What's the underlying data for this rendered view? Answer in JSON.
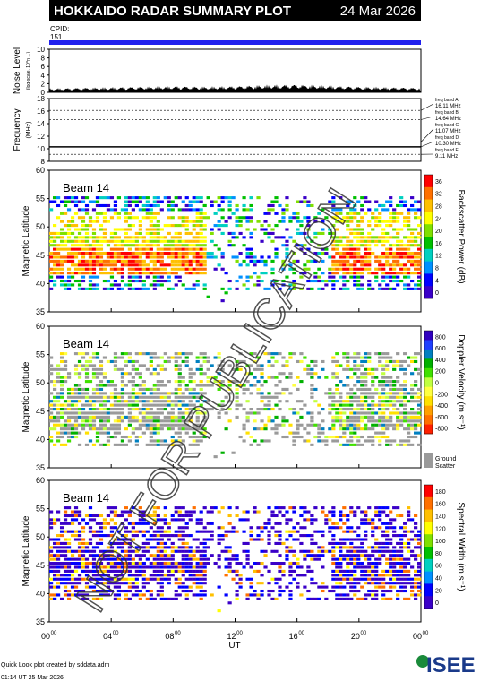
{
  "header": {
    "title": "HOKKAIDO RADAR SUMMARY PLOT",
    "date": "24 Mar 2026",
    "cpid_label": "CPID:",
    "cpid_value": "151"
  },
  "footer": {
    "credit_line1": "Quick Look plot created by sddata.adm",
    "credit_line2": "01:14 UT 25 Mar 2026",
    "logo_text": "ISEE"
  },
  "watermark": "NOT FOR PUBLICATION",
  "colors": {
    "accent_bar": "#2020ee",
    "ground_scatter": "#9a9a9a"
  },
  "chart_data": [
    {
      "type": "area",
      "panel": "noise",
      "ylabel": "Noise Level",
      "ylabel_sub": "(log-scale, 10^n ...)",
      "yticks": [
        0,
        2,
        4,
        6,
        8,
        10
      ],
      "ylim": [
        0,
        10
      ],
      "xlim": [
        0,
        24
      ],
      "series": [
        {
          "x_hours": [
            0,
            2,
            4,
            6,
            8,
            10,
            12,
            14,
            16,
            18,
            20,
            22,
            24
          ],
          "values": [
            0.7,
            0.8,
            0.9,
            1.0,
            1.1,
            1.0,
            1.1,
            1.3,
            1.4,
            1.2,
            1.0,
            0.9,
            0.8
          ]
        }
      ]
    },
    {
      "type": "line",
      "panel": "frequency",
      "ylabel": "Frequency",
      "yunit": "(MHz)",
      "yticks": [
        8,
        10,
        12,
        14,
        16,
        18
      ],
      "ylim": [
        8,
        18
      ],
      "bands": [
        {
          "label": "freq band A",
          "value_label": "16.11 MHz",
          "mhz": 16.11
        },
        {
          "label": "freq band B",
          "value_label": "14.64 MHz",
          "mhz": 14.64
        },
        {
          "label": "freq band C",
          "value_label": "11.07 MHz",
          "mhz": 11.07
        },
        {
          "label": "freq band D",
          "value_label": "10.30 MHz",
          "mhz": 10.3
        },
        {
          "label": "freq band E",
          "value_label": "9.11 MHz",
          "mhz": 9.11
        }
      ],
      "active_mhz": 10.3
    },
    {
      "type": "heatmap",
      "panel": "power",
      "beam_label": "Beam 14",
      "ylabel": "Magnetic Latitude",
      "yticks": [
        35,
        40,
        45,
        50,
        55,
        60
      ],
      "ylim": [
        35,
        60
      ],
      "xlim": [
        0,
        24
      ],
      "colorbar_label": "Backscatter Power (dB)",
      "colorbar_ticks": [
        0,
        4,
        8,
        12,
        16,
        20,
        24,
        28,
        32,
        36
      ],
      "colorbar_colors": [
        "#3a00c8",
        "#0000ff",
        "#0090ff",
        "#00d0c0",
        "#00c000",
        "#80e000",
        "#ffff00",
        "#ffc000",
        "#ff7000",
        "#ff0000"
      ]
    },
    {
      "type": "heatmap",
      "panel": "velocity",
      "beam_label": "Beam 14",
      "ylabel": "Magnetic Latitude",
      "yticks": [
        35,
        40,
        45,
        50,
        55,
        60
      ],
      "ylim": [
        35,
        60
      ],
      "xlim": [
        0,
        24
      ],
      "colorbar_label": "Doppler Velocity (m s⁻¹)",
      "colorbar_ticks": [
        -800,
        -600,
        -400,
        -200,
        0,
        200,
        400,
        600,
        800
      ],
      "colorbar_colors": [
        "#ff2000",
        "#ff7000",
        "#ffa000",
        "#ffe000",
        "#ffff40",
        "#c0ff40",
        "#40e000",
        "#00b000",
        "#0080c0",
        "#2040ff",
        "#3000c0"
      ],
      "ground_scatter_label": "Ground",
      "ground_scatter_label2": "Scatter"
    },
    {
      "type": "heatmap",
      "panel": "width",
      "beam_label": "Beam 14",
      "ylabel": "Magnetic Latitude",
      "yticks": [
        35,
        40,
        45,
        50,
        55,
        60
      ],
      "ylim": [
        35,
        60
      ],
      "xlim": [
        0,
        24
      ],
      "colorbar_label": "Spectral Width (m s⁻¹)",
      "colorbar_ticks": [
        0,
        20,
        40,
        60,
        80,
        100,
        120,
        140,
        160,
        180
      ],
      "colorbar_colors": [
        "#3a00c8",
        "#0000ff",
        "#0090ff",
        "#00d0c0",
        "#00c000",
        "#80e000",
        "#ffff00",
        "#ffc000",
        "#ff7000",
        "#ff0000"
      ]
    }
  ],
  "xaxis": {
    "label": "UT",
    "ticks": [
      {
        "hour": "00",
        "sup": "00",
        "t": 0
      },
      {
        "hour": "04",
        "sup": "00",
        "t": 4
      },
      {
        "hour": "08",
        "sup": "00",
        "t": 8
      },
      {
        "hour": "12",
        "sup": "00",
        "t": 12
      },
      {
        "hour": "16",
        "sup": "00",
        "t": 16
      },
      {
        "hour": "20",
        "sup": "00",
        "t": 20
      },
      {
        "hour": "00",
        "sup": "00",
        "t": 24
      }
    ]
  }
}
